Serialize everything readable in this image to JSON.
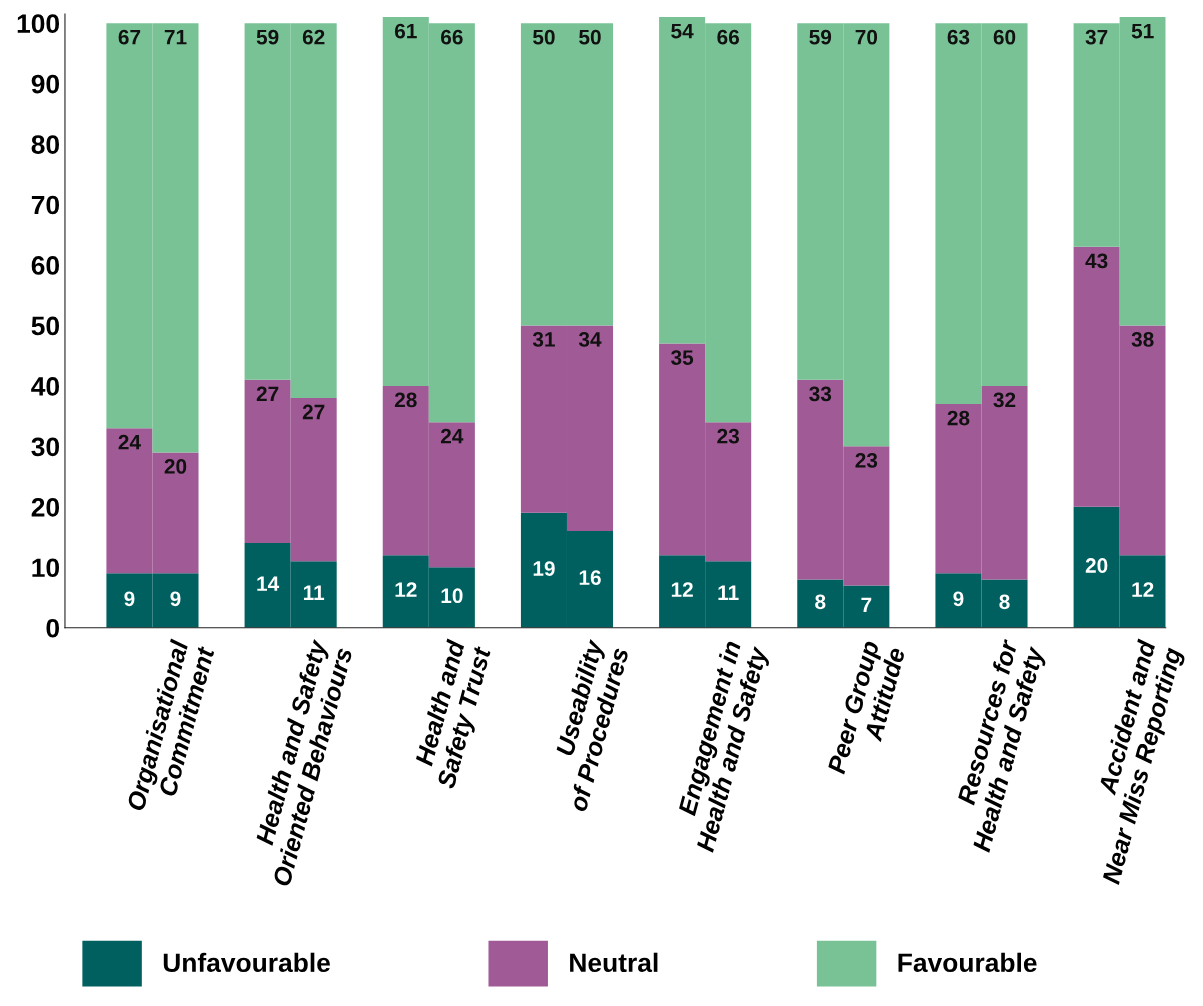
{
  "chart_data": {
    "type": "bar",
    "stacked": true,
    "data_labels": true,
    "legend": "bottom",
    "grid": false,
    "categories": [
      null,
      "Organisational\nCommitment",
      null,
      null,
      "Health and Safety\nOriented Behaviours",
      null,
      null,
      "Health and\nSafety Trust",
      null,
      null,
      "Useability\nof Procedures",
      null,
      null,
      "Engagement in\nHealth and Safety",
      null,
      null,
      "Peer Group\nAttitude",
      null,
      null,
      "Resources for\nHealth and Safety",
      null,
      null,
      "Accident and\nNear Miss Reporting"
    ],
    "series": [
      {
        "name": "Unfavourable",
        "color": "#006060",
        "values": [
          9,
          9,
          null,
          14,
          11,
          null,
          12,
          10,
          null,
          19,
          16,
          null,
          12,
          11,
          null,
          8,
          7,
          null,
          9,
          8,
          null,
          20,
          12
        ]
      },
      {
        "name": "Neutral",
        "color": "#a05a96",
        "values": [
          24,
          20,
          null,
          27,
          27,
          null,
          28,
          24,
          null,
          31,
          34,
          null,
          35,
          23,
          null,
          33,
          23,
          null,
          28,
          32,
          null,
          43,
          38
        ]
      },
      {
        "name": "Favourable",
        "color": "#78c296",
        "values": [
          67,
          71,
          null,
          59,
          62,
          null,
          61,
          66,
          null,
          50,
          50,
          null,
          54,
          66,
          null,
          59,
          70,
          null,
          63,
          60,
          null,
          37,
          51
        ]
      }
    ],
    "ylim": [
      0,
      101.5
    ],
    "yticks": [
      0,
      10,
      20,
      30,
      40,
      50,
      60,
      70,
      80,
      90,
      100
    ]
  }
}
